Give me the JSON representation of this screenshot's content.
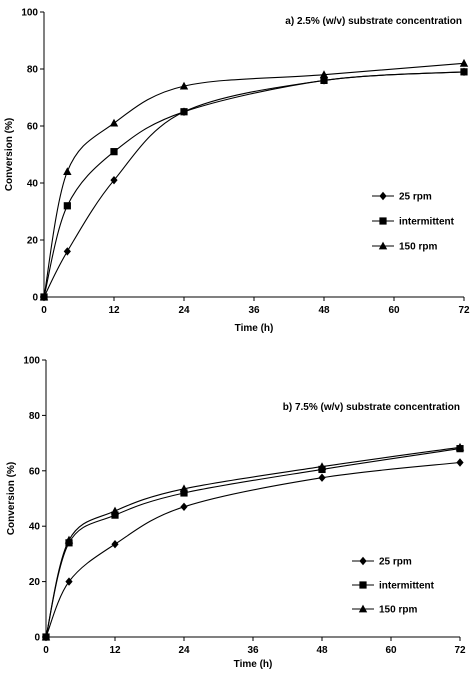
{
  "chart_data": [
    {
      "type": "line",
      "title": "a) 2.5% (w/v) substrate concentration",
      "xlabel": "Time (h)",
      "ylabel": "Conversion (%)",
      "xlim": [
        0,
        72
      ],
      "ylim": [
        0,
        100
      ],
      "xticks": [
        "0",
        "12",
        "24",
        "36",
        "48",
        "60",
        "72"
      ],
      "yticks": [
        "0",
        "20",
        "40",
        "60",
        "80",
        "100"
      ],
      "x": [
        0,
        4,
        12,
        24,
        48,
        72
      ],
      "grid": false,
      "legend_position": "right",
      "series": [
        {
          "name": "25 rpm",
          "marker": "diamond",
          "values": [
            0,
            16,
            41,
            65,
            76,
            79
          ]
        },
        {
          "name": "intermittent",
          "marker": "square",
          "values": [
            0,
            32,
            51,
            65,
            76,
            79
          ]
        },
        {
          "name": "150 rpm",
          "marker": "triangle",
          "values": [
            0,
            44,
            61,
            74,
            78,
            82
          ]
        }
      ]
    },
    {
      "type": "line",
      "title": "b) 7.5% (w/v) substrate concentration",
      "xlabel": "Time (h)",
      "ylabel": "Conversion (%)",
      "xlim": [
        0,
        72
      ],
      "ylim": [
        0,
        100
      ],
      "xticks": [
        "0",
        "12",
        "24",
        "36",
        "48",
        "60",
        "72"
      ],
      "yticks": [
        "0",
        "20",
        "40",
        "60",
        "80",
        "100"
      ],
      "x": [
        0,
        4,
        12,
        24,
        48,
        72
      ],
      "grid": false,
      "legend_position": "right",
      "series": [
        {
          "name": "25 rpm",
          "marker": "diamond",
          "values": [
            0,
            20,
            33.5,
            47,
            57.5,
            63
          ]
        },
        {
          "name": "intermittent",
          "marker": "square",
          "values": [
            0,
            34,
            44,
            52,
            60.5,
            68
          ]
        },
        {
          "name": "150 rpm",
          "marker": "triangle",
          "values": [
            0,
            35,
            45.5,
            53.5,
            61.5,
            68.5
          ]
        }
      ]
    }
  ]
}
